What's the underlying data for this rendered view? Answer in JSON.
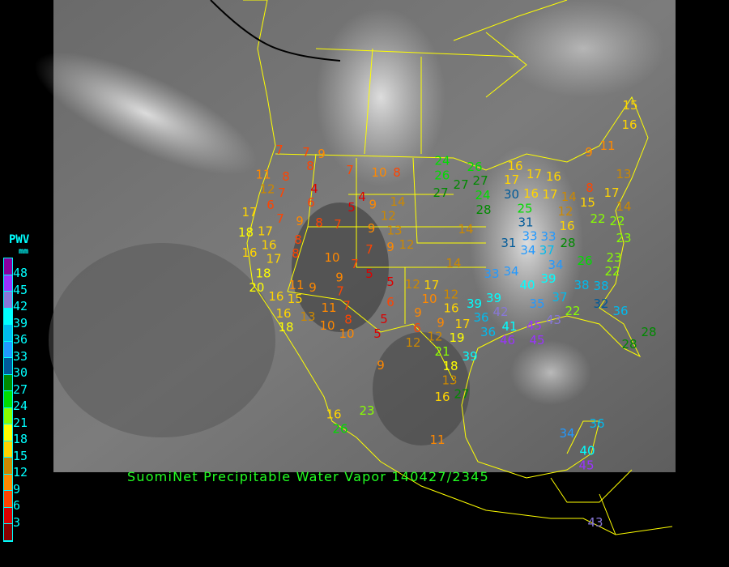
{
  "title": "SuomiNet Precipitable Water Vapor 140427/2345",
  "legend": {
    "title": "PWV",
    "unit": "mm",
    "labels": [
      "48",
      "45",
      "42",
      "39",
      "36",
      "33",
      "30",
      "27",
      "24",
      "21",
      "18",
      "15",
      "12",
      "9",
      "6",
      "3"
    ],
    "colors": [
      "#8a00a0",
      "#9a33ff",
      "#8877d8",
      "#00ffff",
      "#00bbee",
      "#2299ff",
      "#005a99",
      "#008a00",
      "#00dd00",
      "#88ff00",
      "#ffff00",
      "#ffd400",
      "#cc8800",
      "#ff8800",
      "#ff4400",
      "#dd0000",
      "#880000"
    ]
  },
  "stations": [
    "7",
    "7",
    "9",
    "11",
    "8",
    "8",
    "12",
    "7",
    "4",
    "7",
    "10",
    "8",
    "6",
    "6",
    "4",
    "5",
    "9",
    "14",
    "17",
    "7",
    "9",
    "8",
    "7",
    "9",
    "12",
    "13",
    "18",
    "17",
    "8",
    "7",
    "9",
    "12",
    "10",
    "16",
    "16",
    "17",
    "18",
    "8",
    "7",
    "5",
    "5",
    "9",
    "20",
    "16",
    "11",
    "9",
    "7",
    "15",
    "13",
    "11",
    "7",
    "16",
    "18",
    "10",
    "8",
    "10",
    "5",
    "6",
    "5",
    "12",
    "17",
    "9",
    "10",
    "12",
    "16",
    "9",
    "6",
    "12",
    "12",
    "17",
    "19",
    "9",
    "21",
    "18",
    "13",
    "27",
    "16",
    "11",
    "23",
    "26",
    "16",
    "24",
    "26",
    "27",
    "26",
    "27",
    "27",
    "24",
    "28",
    "30",
    "25",
    "31",
    "33",
    "31",
    "34",
    "33",
    "37",
    "28",
    "14",
    "14",
    "33",
    "34",
    "40",
    "39",
    "34",
    "38",
    "38",
    "26",
    "23",
    "22",
    "35",
    "37",
    "22",
    "32",
    "36",
    "39",
    "39",
    "42",
    "36",
    "36",
    "41",
    "46",
    "45",
    "43",
    "45",
    "39",
    "16",
    "17",
    "16",
    "17",
    "16",
    "17",
    "14",
    "15",
    "8",
    "17",
    "14",
    "12",
    "16",
    "22",
    "22",
    "23",
    "9",
    "11",
    "13",
    "15",
    "16",
    "34",
    "36",
    "45",
    "40",
    "28",
    "28",
    "43"
  ]
}
